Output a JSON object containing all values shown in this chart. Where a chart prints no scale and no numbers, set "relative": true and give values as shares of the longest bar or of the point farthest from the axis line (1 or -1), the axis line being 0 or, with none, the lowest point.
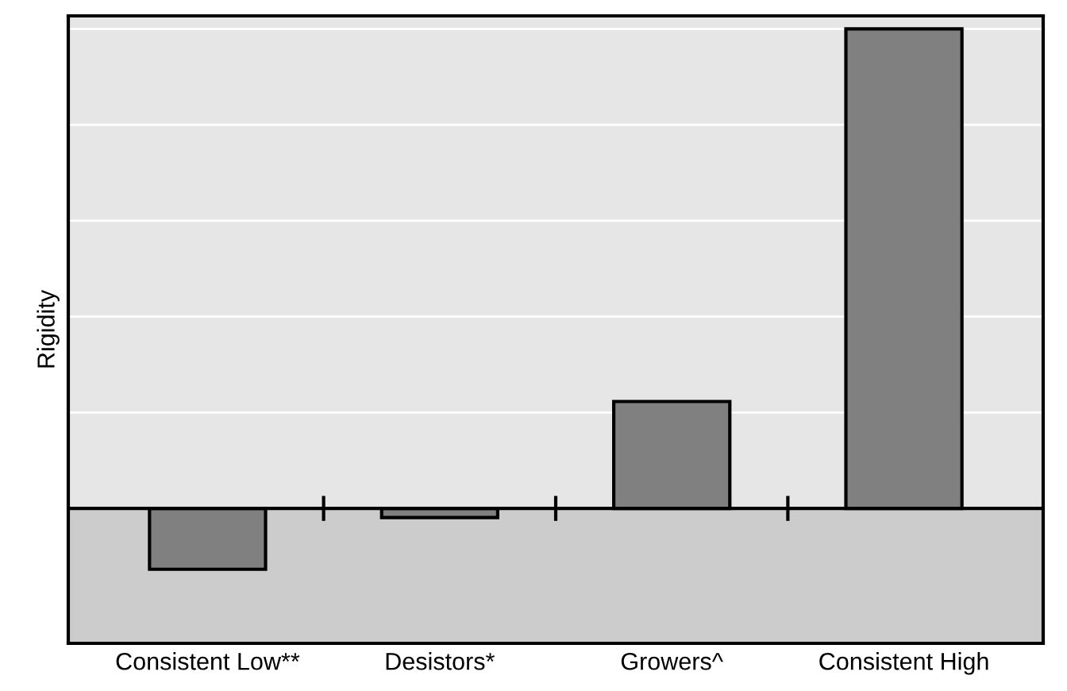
{
  "chart_data": {
    "type": "bar",
    "ylabel": "Rigidity",
    "categories": [
      "Consistent Low**",
      "Desistors*",
      "Growers^",
      "Consistent High"
    ],
    "values": [
      -0.127,
      -0.019,
      0.223,
      1
    ],
    "color": "#808080",
    "relative": true,
    "grid": "y",
    "bands": [
      {
        "axis": "y",
        "from": -0.28,
        "to": 0,
        "color": "#cccccc"
      }
    ]
  }
}
